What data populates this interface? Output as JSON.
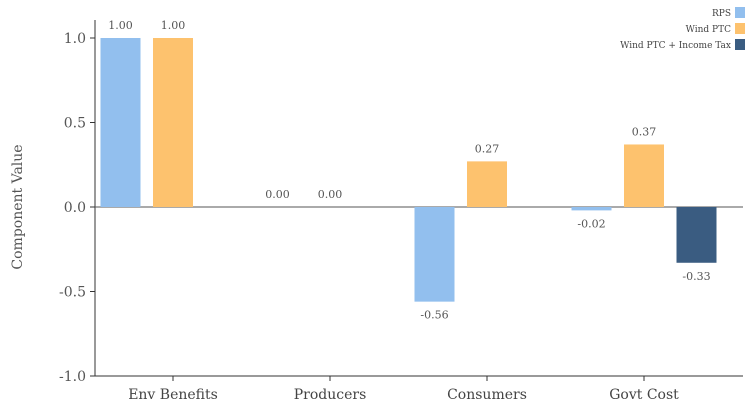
{
  "chart_data": {
    "type": "bar",
    "title": "",
    "xlabel": "",
    "ylabel": "Component Value",
    "ylim": [
      -1.0,
      1.0
    ],
    "yticks": [
      "-1.0",
      "-0.5",
      "0.0",
      "0.5",
      "1.0"
    ],
    "ytick_values": [
      -1.0,
      -0.5,
      0.0,
      0.5,
      1.0
    ],
    "grid": false,
    "legend_position": "top-right",
    "categories": [
      "Env Benefits",
      "Producers",
      "Consumers",
      "Govt Cost"
    ],
    "series": [
      {
        "name": "RPS",
        "color": "#92BFEE",
        "values": [
          1.0,
          0.0,
          -0.56,
          -0.02
        ],
        "labels": [
          "1.00",
          "0.00",
          "-0.56",
          "-0.02"
        ]
      },
      {
        "name": "Wind PTC",
        "color": "#FDC26E",
        "values": [
          1.0,
          0.0,
          0.27,
          0.37
        ],
        "labels": [
          "1.00",
          "0.00",
          "0.27",
          "0.37"
        ]
      },
      {
        "name": "Wind PTC + Income Tax",
        "color": "#3A5C81",
        "values": [
          null,
          null,
          null,
          -0.33
        ],
        "labels": [
          null,
          null,
          null,
          "-0.33"
        ]
      }
    ]
  }
}
